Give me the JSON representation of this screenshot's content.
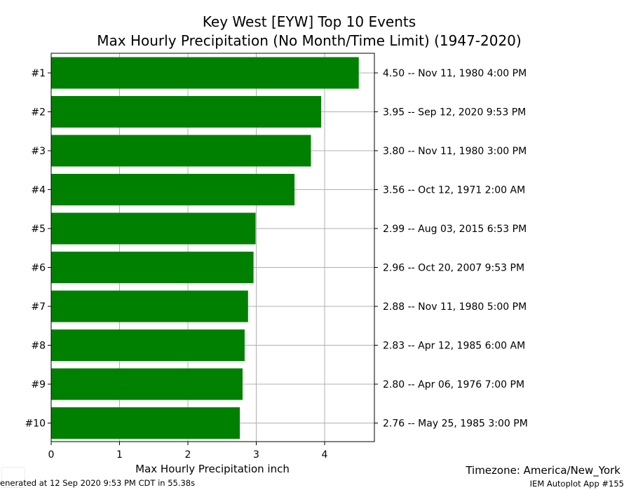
{
  "chart_data": {
    "type": "bar",
    "orientation": "horizontal",
    "title": "Key West [EYW] Top 10 Events",
    "subtitle": "Max Hourly Precipitation  (No Month/Time Limit) (1947-2020)",
    "xlabel": "Max Hourly Precipitation inch",
    "ylabel": "",
    "xlim": [
      0,
      4.73
    ],
    "xticks": [
      "0",
      "1",
      "2",
      "3",
      "4"
    ],
    "grid": true,
    "bar_color": "#008000",
    "categories": [
      "#1",
      "#2",
      "#3",
      "#4",
      "#5",
      "#6",
      "#7",
      "#8",
      "#9",
      "#10"
    ],
    "values": [
      4.5,
      3.95,
      3.8,
      3.56,
      2.99,
      2.96,
      2.88,
      2.83,
      2.8,
      2.76
    ],
    "annotations": [
      "4.50 -- Nov 11, 1980 4:00 PM",
      "3.95 -- Sep 12, 2020 9:53 PM",
      "3.80 -- Nov 11, 1980 3:00 PM",
      "3.56 -- Oct 12, 1971 2:00 AM",
      "2.99 -- Aug 03, 2015 6:53 PM",
      "2.96 -- Oct 20, 2007 9:53 PM",
      "2.88 -- Nov 11, 1980 5:00 PM",
      "2.83 -- Apr 12, 1985 6:00 AM",
      "2.80 -- Apr 06, 1976 7:00 PM",
      "2.76 -- May 25, 1985 3:00 PM"
    ]
  },
  "footer": {
    "generated": "enerated at 12 Sep 2020 9:53 PM CDT in 55.38s",
    "timezone": "Timezone: America/New_York",
    "app": "IEM Autoplot App #155"
  }
}
